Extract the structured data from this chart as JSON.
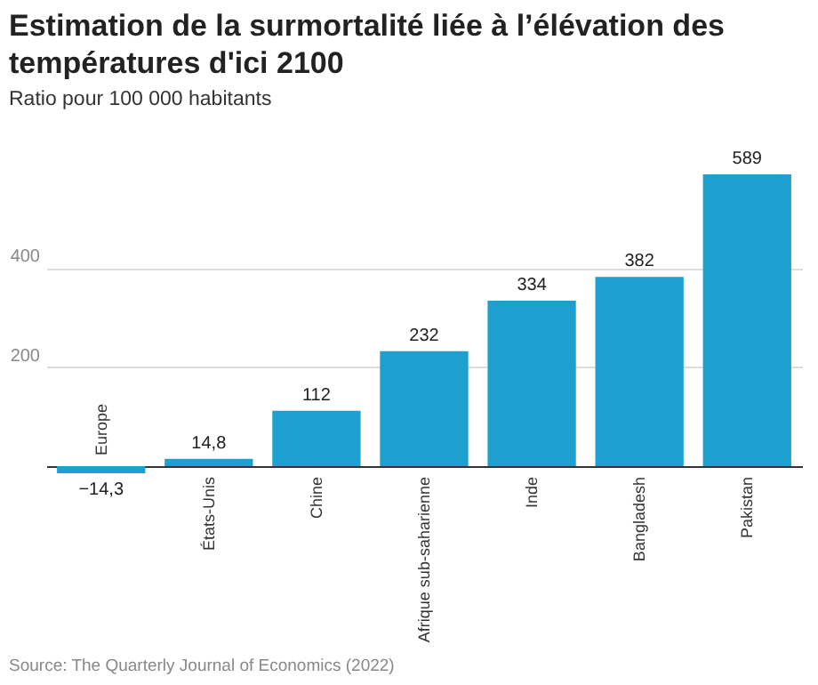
{
  "chart_data": {
    "type": "bar",
    "title": "Estimation de la surmortalité liée à l’élévation des températures d'ici 2100",
    "subtitle": "Ratio pour 100 000 habitants",
    "categories": [
      "Europe",
      "États-Unis",
      "Chine",
      "Afrique sub-saharienne",
      "Inde",
      "Bangladesh",
      "Pakistan"
    ],
    "values": [
      -14.3,
      14.8,
      112,
      232,
      334,
      382,
      589
    ],
    "value_labels": [
      "−14,3",
      "14,8",
      "112",
      "232",
      "334",
      "382",
      "589"
    ],
    "color": "#1d9fcf",
    "ylim": [
      -14.3,
      589
    ],
    "yticks": [
      {
        "value": 0,
        "label": null
      },
      200,
      400
    ],
    "grid": "y",
    "annotations": [
      "Source: The Quarterly Journal of Economics (2022)"
    ]
  }
}
